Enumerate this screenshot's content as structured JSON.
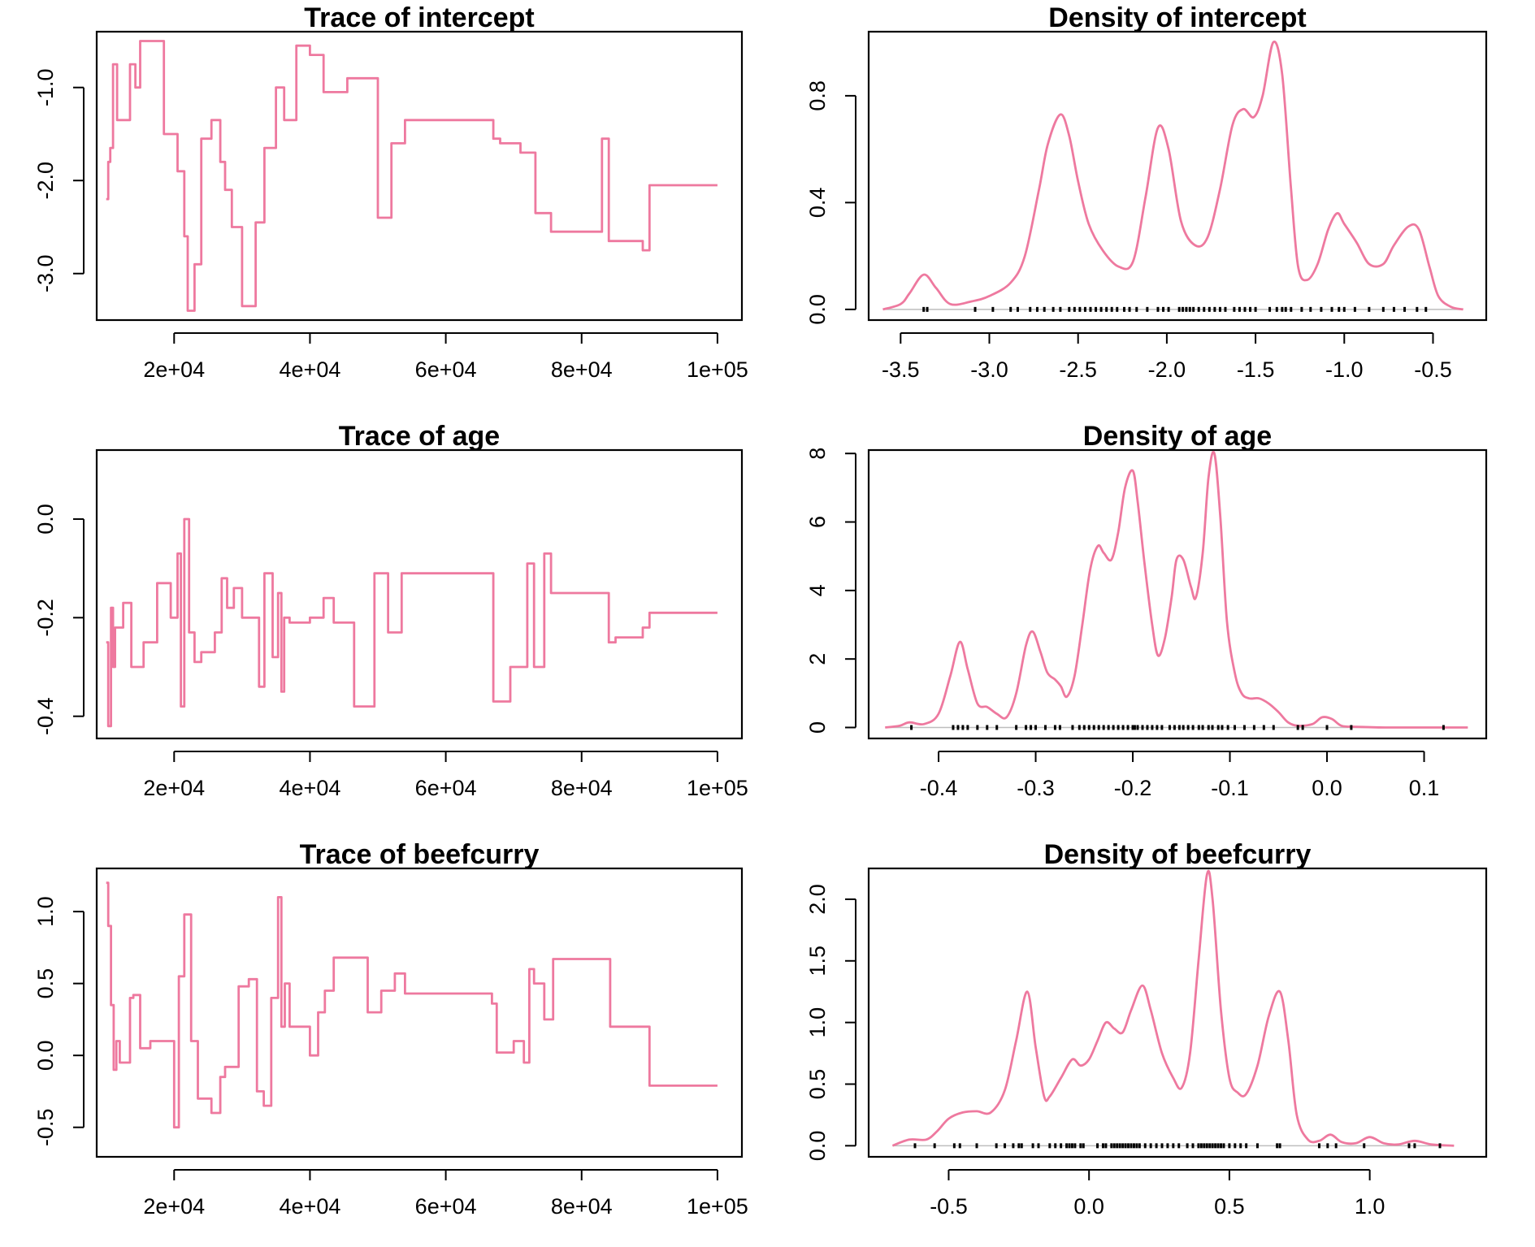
{
  "chart_data": [
    {
      "type": "line",
      "title": "Trace of intercept",
      "xlim": [
        8600,
        103600
      ],
      "ylim": [
        -3.5,
        -0.4
      ],
      "xticks": [
        20000,
        40000,
        60000,
        80000,
        100000
      ],
      "xtick_labels": [
        "2e+04",
        "4e+04",
        "6e+04",
        "8e+04",
        "1e+05"
      ],
      "yticks": [
        -3.0,
        -2.0,
        -1.0
      ],
      "ytick_labels": [
        "-3.0",
        "-2.0",
        "-1.0"
      ],
      "step": true,
      "color": "#EE799F",
      "x": [
        10000,
        10300,
        10600,
        11000,
        11600,
        12200,
        13500,
        14300,
        15000,
        16500,
        18500,
        20500,
        21500,
        22000,
        23000,
        24000,
        25500,
        26800,
        27500,
        28500,
        30000,
        32000,
        33300,
        35000,
        36200,
        38000,
        40000,
        42000,
        44000,
        45500,
        48000,
        50000,
        52000,
        54000,
        62000,
        65000,
        67000,
        68000,
        71000,
        73200,
        74000,
        75500,
        78000,
        83000,
        84000,
        86000,
        89000,
        90000,
        100000
      ],
      "y": [
        -2.2,
        -1.8,
        -1.65,
        -0.75,
        -1.35,
        -1.35,
        -0.75,
        -1.0,
        -0.5,
        -0.5,
        -1.5,
        -1.9,
        -2.6,
        -3.4,
        -2.9,
        -1.55,
        -1.35,
        -1.8,
        -2.1,
        -2.5,
        -3.35,
        -2.45,
        -1.65,
        -1.0,
        -1.35,
        -0.55,
        -0.65,
        -1.05,
        -1.05,
        -0.9,
        -0.9,
        -2.4,
        -1.6,
        -1.35,
        -1.35,
        -1.35,
        -1.55,
        -1.6,
        -1.7,
        -2.35,
        -2.35,
        -2.55,
        -2.55,
        -1.55,
        -2.65,
        -2.65,
        -2.75,
        -2.05,
        -2.05
      ]
    },
    {
      "type": "line",
      "title": "Density of intercept",
      "xlim": [
        -3.68,
        -0.2
      ],
      "ylim": [
        -0.04,
        1.04
      ],
      "xticks": [
        -3.5,
        -3.0,
        -2.5,
        -2.0,
        -1.5,
        -1.0,
        -0.5
      ],
      "xtick_labels": [
        "-3.5",
        "-3.0",
        "-2.5",
        "-2.0",
        "-1.5",
        "-1.0",
        "-0.5"
      ],
      "yticks": [
        0.0,
        0.4,
        0.8
      ],
      "ytick_labels": [
        "0.0",
        "0.4",
        "0.8"
      ],
      "color": "#EE799F",
      "x": [
        -3.6,
        -3.5,
        -3.45,
        -3.37,
        -3.3,
        -3.22,
        -3.1,
        -3.0,
        -2.88,
        -2.8,
        -2.72,
        -2.67,
        -2.6,
        -2.55,
        -2.5,
        -2.44,
        -2.36,
        -2.27,
        -2.19,
        -2.12,
        -2.05,
        -1.99,
        -1.92,
        -1.84,
        -1.77,
        -1.7,
        -1.63,
        -1.57,
        -1.51,
        -1.46,
        -1.4,
        -1.35,
        -1.3,
        -1.26,
        -1.21,
        -1.15,
        -1.09,
        -1.04,
        -1.0,
        -0.93,
        -0.86,
        -0.78,
        -0.72,
        -0.64,
        -0.58,
        -0.52,
        -0.47,
        -0.4,
        -0.33
      ],
      "y": [
        0.0,
        0.02,
        0.06,
        0.13,
        0.08,
        0.02,
        0.03,
        0.05,
        0.1,
        0.2,
        0.45,
        0.62,
        0.73,
        0.65,
        0.48,
        0.32,
        0.22,
        0.16,
        0.18,
        0.42,
        0.68,
        0.6,
        0.33,
        0.24,
        0.27,
        0.45,
        0.69,
        0.75,
        0.72,
        0.8,
        1.0,
        0.88,
        0.45,
        0.16,
        0.11,
        0.17,
        0.3,
        0.36,
        0.32,
        0.25,
        0.17,
        0.17,
        0.24,
        0.31,
        0.3,
        0.16,
        0.05,
        0.01,
        0.0
      ],
      "rug": [
        -3.37,
        -3.35,
        -3.08,
        -2.98,
        -2.88,
        -2.84,
        -2.77,
        -2.73,
        -2.69,
        -2.64,
        -2.6,
        -2.55,
        -2.52,
        -2.49,
        -2.46,
        -2.43,
        -2.4,
        -2.37,
        -2.34,
        -2.31,
        -2.28,
        -2.24,
        -2.21,
        -2.17,
        -2.11,
        -2.05,
        -2.02,
        -1.99,
        -1.93,
        -1.91,
        -1.89,
        -1.87,
        -1.85,
        -1.82,
        -1.79,
        -1.76,
        -1.73,
        -1.7,
        -1.67,
        -1.62,
        -1.59,
        -1.56,
        -1.53,
        -1.5,
        -1.42,
        -1.38,
        -1.35,
        -1.33,
        -1.3,
        -1.24,
        -1.19,
        -1.13,
        -1.07,
        -1.03,
        -1.0,
        -0.94,
        -0.86,
        -0.78,
        -0.72,
        -0.66,
        -0.59,
        -0.54
      ]
    },
    {
      "type": "line",
      "title": "Trace of age",
      "xlim": [
        8600,
        103600
      ],
      "ylim": [
        -0.445,
        0.14
      ],
      "xticks": [
        20000,
        40000,
        60000,
        80000,
        100000
      ],
      "xtick_labels": [
        "2e+04",
        "4e+04",
        "6e+04",
        "8e+04",
        "1e+05"
      ],
      "yticks": [
        -0.4,
        -0.2,
        0.0
      ],
      "ytick_labels": [
        "-0.4",
        "-0.2",
        "0.0"
      ],
      "step": true,
      "color": "#EE799F",
      "x": [
        10000,
        10300,
        10700,
        11000,
        11300,
        11700,
        12500,
        13700,
        14300,
        15500,
        17500,
        19500,
        20500,
        21000,
        21500,
        22200,
        23000,
        24000,
        26000,
        27000,
        27800,
        28800,
        30000,
        31200,
        32500,
        33300,
        34500,
        35300,
        35800,
        36200,
        37000,
        40000,
        42000,
        43500,
        46500,
        49500,
        51500,
        53500,
        64000,
        67000,
        69500,
        72000,
        73000,
        74500,
        75500,
        84000,
        85000,
        88500,
        89000,
        90000,
        100000
      ],
      "y": [
        -0.25,
        -0.42,
        -0.18,
        -0.3,
        -0.22,
        -0.22,
        -0.17,
        -0.3,
        -0.3,
        -0.25,
        -0.13,
        -0.2,
        -0.07,
        -0.38,
        0.0,
        -0.23,
        -0.29,
        -0.27,
        -0.23,
        -0.12,
        -0.18,
        -0.14,
        -0.2,
        -0.2,
        -0.34,
        -0.11,
        -0.28,
        -0.15,
        -0.35,
        -0.2,
        -0.21,
        -0.2,
        -0.16,
        -0.21,
        -0.38,
        -0.11,
        -0.23,
        -0.11,
        -0.11,
        -0.37,
        -0.3,
        -0.09,
        -0.3,
        -0.07,
        -0.15,
        -0.25,
        -0.24,
        -0.24,
        -0.22,
        -0.19,
        -0.19
      ]
    },
    {
      "type": "line",
      "title": "Density of age",
      "xlim": [
        -0.472,
        0.164
      ],
      "ylim": [
        -0.32,
        8.1
      ],
      "xticks": [
        -0.4,
        -0.3,
        -0.2,
        -0.1,
        0.0,
        0.1
      ],
      "xtick_labels": [
        "-0.4",
        "-0.3",
        "-0.2",
        "-0.1",
        "0.0",
        "0.1"
      ],
      "yticks": [
        0,
        2,
        4,
        6,
        8
      ],
      "ytick_labels": [
        "0",
        "2",
        "4",
        "6",
        "8"
      ],
      "color": "#EE799F",
      "x": [
        -0.455,
        -0.44,
        -0.43,
        -0.415,
        -0.4,
        -0.388,
        -0.378,
        -0.37,
        -0.36,
        -0.35,
        -0.34,
        -0.33,
        -0.32,
        -0.31,
        -0.303,
        -0.295,
        -0.288,
        -0.28,
        -0.274,
        -0.268,
        -0.26,
        -0.252,
        -0.244,
        -0.236,
        -0.23,
        -0.222,
        -0.215,
        -0.208,
        -0.2,
        -0.195,
        -0.188,
        -0.18,
        -0.174,
        -0.167,
        -0.16,
        -0.155,
        -0.148,
        -0.14,
        -0.135,
        -0.128,
        -0.122,
        -0.116,
        -0.11,
        -0.103,
        -0.095,
        -0.088,
        -0.08,
        -0.07,
        -0.06,
        -0.05,
        -0.04,
        -0.03,
        -0.015,
        -0.005,
        0.005,
        0.015,
        0.03,
        0.06,
        0.1,
        0.145
      ],
      "y": [
        0.0,
        0.05,
        0.15,
        0.1,
        0.4,
        1.5,
        2.5,
        1.7,
        0.7,
        0.6,
        0.4,
        0.3,
        1.0,
        2.4,
        2.8,
        2.2,
        1.6,
        1.4,
        1.2,
        0.9,
        1.5,
        3.0,
        4.6,
        5.3,
        5.1,
        4.9,
        5.7,
        7.0,
        7.5,
        6.6,
        4.8,
        3.0,
        2.1,
        2.6,
        3.8,
        4.9,
        4.9,
        4.1,
        3.8,
        5.1,
        7.3,
        8.0,
        6.2,
        3.1,
        1.6,
        1.0,
        0.85,
        0.85,
        0.7,
        0.45,
        0.15,
        0.05,
        0.1,
        0.3,
        0.25,
        0.05,
        0.02,
        0.0,
        0.0,
        0.0
      ],
      "rug": [
        -0.428,
        -0.385,
        -0.38,
        -0.375,
        -0.37,
        -0.36,
        -0.35,
        -0.34,
        -0.32,
        -0.31,
        -0.305,
        -0.3,
        -0.29,
        -0.28,
        -0.275,
        -0.262,
        -0.255,
        -0.25,
        -0.245,
        -0.24,
        -0.235,
        -0.23,
        -0.225,
        -0.22,
        -0.215,
        -0.21,
        -0.205,
        -0.2,
        -0.198,
        -0.195,
        -0.19,
        -0.185,
        -0.18,
        -0.175,
        -0.17,
        -0.162,
        -0.157,
        -0.152,
        -0.148,
        -0.143,
        -0.138,
        -0.132,
        -0.128,
        -0.122,
        -0.118,
        -0.112,
        -0.108,
        -0.102,
        -0.095,
        -0.085,
        -0.075,
        -0.065,
        -0.055,
        -0.03,
        -0.025,
        0.0,
        0.025,
        0.12
      ]
    },
    {
      "type": "line",
      "title": "Trace of beefcurry",
      "xlim": [
        8600,
        103600
      ],
      "ylim": [
        -0.705,
        1.3
      ],
      "xticks": [
        20000,
        40000,
        60000,
        80000,
        100000
      ],
      "xtick_labels": [
        "2e+04",
        "4e+04",
        "6e+04",
        "8e+04",
        "1e+05"
      ],
      "yticks": [
        -0.5,
        0.0,
        0.5,
        1.0
      ],
      "ytick_labels": [
        "-0.5",
        "0.0",
        "0.5",
        "1.0"
      ],
      "step": true,
      "color": "#EE799F",
      "x": [
        10000,
        10300,
        10700,
        11100,
        11500,
        12000,
        13500,
        14000,
        15000,
        16500,
        17800,
        19500,
        20000,
        20700,
        21500,
        22500,
        23500,
        25500,
        26800,
        27500,
        28500,
        29500,
        31000,
        32200,
        33200,
        34300,
        35300,
        35800,
        36300,
        37000,
        40000,
        41200,
        42200,
        43500,
        46500,
        48500,
        50500,
        52500,
        54000,
        64000,
        66800,
        67500,
        70000,
        71500,
        72300,
        73000,
        74500,
        75800,
        83200,
        84200,
        89000,
        90000,
        100000
      ],
      "y": [
        1.2,
        0.9,
        0.35,
        -0.1,
        0.1,
        -0.05,
        0.4,
        0.42,
        0.05,
        0.1,
        0.1,
        0.1,
        -0.5,
        0.55,
        0.98,
        0.1,
        -0.3,
        -0.4,
        -0.15,
        -0.08,
        -0.08,
        0.48,
        0.53,
        -0.25,
        -0.35,
        0.4,
        1.1,
        0.2,
        0.5,
        0.2,
        0.0,
        0.3,
        0.45,
        0.68,
        0.68,
        0.3,
        0.45,
        0.57,
        0.43,
        0.43,
        0.36,
        0.02,
        0.1,
        -0.05,
        0.6,
        0.5,
        0.25,
        0.67,
        0.67,
        0.2,
        0.2,
        -0.21,
        -0.21
      ]
    },
    {
      "type": "line",
      "title": "Density of beefcurry",
      "xlim": [
        -0.785,
        1.415
      ],
      "ylim": [
        -0.09,
        2.25
      ],
      "xticks": [
        -0.5,
        0.0,
        0.5,
        1.0
      ],
      "xtick_labels": [
        "-0.5",
        "0.0",
        "0.5",
        "1.0"
      ],
      "yticks": [
        0.0,
        0.5,
        1.0,
        1.5,
        2.0
      ],
      "ytick_labels": [
        "0.0",
        "0.5",
        "1.0",
        "1.5",
        "2.0"
      ],
      "color": "#EE799F",
      "x": [
        -0.7,
        -0.64,
        -0.58,
        -0.54,
        -0.5,
        -0.45,
        -0.4,
        -0.35,
        -0.3,
        -0.26,
        -0.22,
        -0.19,
        -0.16,
        -0.14,
        -0.1,
        -0.06,
        -0.03,
        0.0,
        0.03,
        0.06,
        0.09,
        0.12,
        0.15,
        0.19,
        0.22,
        0.26,
        0.3,
        0.33,
        0.36,
        0.39,
        0.42,
        0.44,
        0.47,
        0.5,
        0.53,
        0.56,
        0.6,
        0.64,
        0.68,
        0.71,
        0.74,
        0.78,
        0.82,
        0.86,
        0.9,
        0.95,
        1.0,
        1.05,
        1.1,
        1.16,
        1.22,
        1.3
      ],
      "y": [
        0.0,
        0.05,
        0.05,
        0.12,
        0.22,
        0.27,
        0.28,
        0.27,
        0.45,
        0.85,
        1.25,
        0.8,
        0.4,
        0.4,
        0.55,
        0.7,
        0.65,
        0.7,
        0.85,
        1.0,
        0.95,
        0.92,
        1.1,
        1.3,
        1.1,
        0.75,
        0.55,
        0.47,
        0.75,
        1.5,
        2.2,
        2.0,
        1.1,
        0.55,
        0.43,
        0.42,
        0.65,
        1.05,
        1.25,
        0.85,
        0.25,
        0.05,
        0.04,
        0.09,
        0.03,
        0.02,
        0.07,
        0.02,
        0.01,
        0.04,
        0.01,
        0.0
      ],
      "rug": [
        -0.62,
        -0.55,
        -0.48,
        -0.46,
        -0.4,
        -0.33,
        -0.3,
        -0.27,
        -0.25,
        -0.24,
        -0.2,
        -0.18,
        -0.14,
        -0.12,
        -0.1,
        -0.08,
        -0.07,
        -0.06,
        -0.05,
        -0.03,
        -0.02,
        0.03,
        0.05,
        0.06,
        0.08,
        0.09,
        0.1,
        0.11,
        0.12,
        0.13,
        0.14,
        0.15,
        0.16,
        0.17,
        0.18,
        0.2,
        0.22,
        0.24,
        0.26,
        0.28,
        0.3,
        0.32,
        0.35,
        0.37,
        0.39,
        0.4,
        0.41,
        0.42,
        0.43,
        0.44,
        0.45,
        0.46,
        0.47,
        0.48,
        0.5,
        0.52,
        0.54,
        0.56,
        0.6,
        0.67,
        0.68,
        0.82,
        0.85,
        0.88,
        0.98,
        1.14,
        1.16,
        1.25
      ]
    }
  ]
}
